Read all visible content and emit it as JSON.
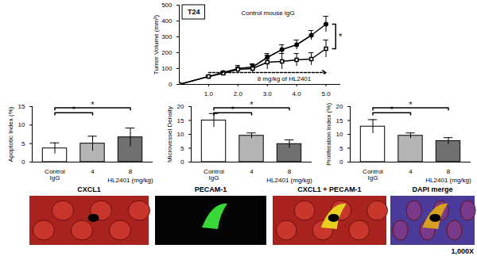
{
  "chart_data": [
    {
      "type": "line",
      "title": "T24",
      "y_label": "Tumor Volume (mm³)",
      "x": [
        0,
        1,
        1.5,
        2,
        2.5,
        3,
        3.5,
        4,
        4.5,
        5
      ],
      "series": [
        {
          "name": "Control mouse IgG",
          "color": "#000000",
          "marker": "circle",
          "line_style": "solid",
          "values": [
            0,
            50,
            75,
            100,
            110,
            170,
            220,
            250,
            310,
            380
          ],
          "errors": [
            0,
            5,
            8,
            10,
            15,
            25,
            30,
            30,
            30,
            50
          ]
        },
        {
          "name": "8 mg/kg of HL2401",
          "color": "#000000",
          "marker": "square",
          "line_style": "solid",
          "values": [
            0,
            50,
            70,
            95,
            100,
            140,
            145,
            155,
            160,
            225
          ],
          "errors": [
            0,
            8,
            10,
            25,
            30,
            45,
            50,
            40,
            40,
            55
          ]
        }
      ],
      "xlim": [
        0,
        5.5
      ],
      "xticks": [
        1,
        2,
        3,
        4,
        5
      ],
      "ylim": [
        0,
        500
      ],
      "yticks": [
        0,
        100,
        200,
        300,
        400,
        500
      ],
      "significance": [
        {
          "series": [
            "Control mouse IgG",
            "8 mg/kg of HL2401"
          ],
          "label": "*"
        }
      ]
    },
    {
      "type": "bar",
      "y_label": "Apoptotic Index (%)",
      "x_label": "HL2401 (mg/kg)",
      "categories": [
        "Control IgG",
        "4",
        "8"
      ],
      "values": [
        3.7,
        5.0,
        6.7
      ],
      "errors": [
        1.5,
        2.0,
        2.5
      ],
      "colors": [
        "#ffffff",
        "#b4b4b4",
        "#707070"
      ],
      "ylim": [
        0,
        15
      ],
      "yticks": [
        0,
        5,
        10,
        15
      ],
      "significance": [
        {
          "categories": [
            "Control IgG",
            "4"
          ],
          "label": "*"
        },
        {
          "categories": [
            "Control IgG",
            "8"
          ],
          "label": "*"
        }
      ]
    },
    {
      "type": "bar",
      "y_label": "Microvessel Density",
      "x_label": "HL2401 (mg/kg)",
      "categories": [
        "Control IgG",
        "4",
        "8"
      ],
      "values": [
        15.0,
        9.5,
        6.5
      ],
      "errors": [
        2.5,
        1.0,
        1.5
      ],
      "colors": [
        "#ffffff",
        "#b4b4b4",
        "#707070"
      ],
      "ylim": [
        0,
        20
      ],
      "yticks": [
        0,
        5,
        10,
        15,
        20
      ],
      "significance": [
        {
          "categories": [
            "Control IgG",
            "4"
          ],
          "label": "*"
        },
        {
          "categories": [
            "Control IgG",
            "8"
          ],
          "label": "*"
        }
      ]
    },
    {
      "type": "bar",
      "y_label": "Proliferation Index (%)",
      "x_label": "HL2401 (mg/kg)",
      "categories": [
        "Control IgG",
        "4",
        "8"
      ],
      "values": [
        12.8,
        9.5,
        7.6
      ],
      "errors": [
        2.5,
        1.0,
        1.2
      ],
      "colors": [
        "#ffffff",
        "#b4b4b4",
        "#707070"
      ],
      "ylim": [
        0,
        20
      ],
      "yticks": [
        0,
        5,
        10,
        15,
        20
      ],
      "significance": [
        {
          "categories": [
            "Control IgG",
            "4"
          ],
          "label": "*"
        },
        {
          "categories": [
            "Control IgG",
            "8"
          ],
          "label": "*"
        }
      ]
    }
  ],
  "images": {
    "panels": [
      "CXCL1",
      "PECAM-1",
      "CXCL1 + PECAM-1",
      "DAPI merge"
    ],
    "magnification": "1,000X"
  }
}
